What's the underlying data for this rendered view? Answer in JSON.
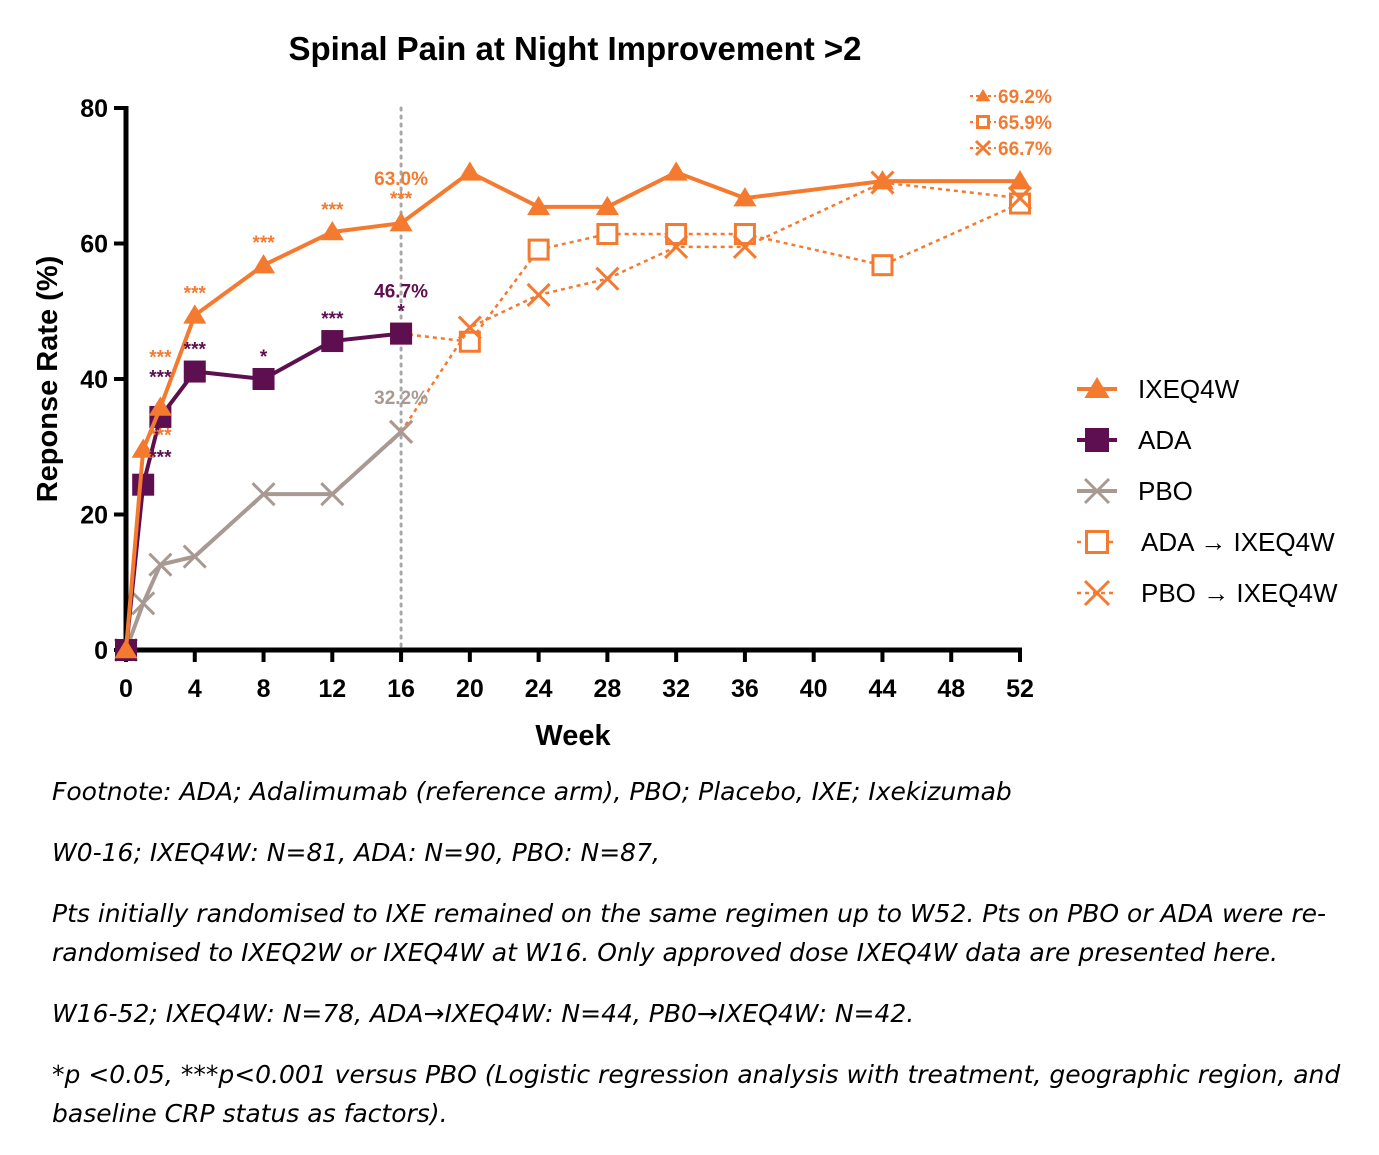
{
  "chart_data": {
    "type": "line",
    "title": "Spinal Pain at Night Improvement >2",
    "xlabel": "Week",
    "ylabel": "Reponse Rate (%)",
    "xlim": [
      0,
      52
    ],
    "ylim": [
      0,
      80
    ],
    "x_ticks": [
      0,
      4,
      8,
      12,
      16,
      20,
      24,
      28,
      32,
      36,
      40,
      44,
      48,
      52
    ],
    "y_ticks": [
      0,
      20,
      40,
      60,
      80
    ],
    "reference_line_x": 16,
    "legend_position": "right",
    "series": [
      {
        "name": "IXEQ4W",
        "color": "#f47a30",
        "marker": "triangle",
        "line": "solid",
        "x": [
          0,
          1,
          2,
          4,
          8,
          12,
          16,
          20,
          24,
          28,
          32,
          36,
          44,
          52
        ],
        "y": [
          0,
          29.6,
          35.8,
          49.4,
          56.8,
          61.7,
          63.0,
          70.5,
          65.4,
          65.4,
          70.5,
          66.7,
          69.2,
          69.2
        ]
      },
      {
        "name": "ADA",
        "color": "#5d0f4f",
        "marker": "square",
        "line": "solid",
        "x": [
          0,
          1,
          2,
          4,
          8,
          12,
          16
        ],
        "y": [
          0,
          24.4,
          34.4,
          41.1,
          40.0,
          45.6,
          46.7
        ]
      },
      {
        "name": "PBO",
        "color": "#a89a92",
        "marker": "x",
        "line": "solid",
        "x": [
          0,
          1,
          2,
          4,
          8,
          12,
          16
        ],
        "y": [
          0,
          6.9,
          12.6,
          13.8,
          23.0,
          23.0,
          32.2
        ]
      },
      {
        "name": "ADA → IXEQ4W",
        "color": "#f47a30",
        "marker": "open-square",
        "line": "dotted",
        "x": [
          16,
          20,
          24,
          28,
          32,
          36,
          44,
          52
        ],
        "y": [
          46.7,
          45.5,
          59.1,
          61.4,
          61.4,
          61.4,
          56.8,
          65.9
        ]
      },
      {
        "name": "PBO → IXEQ4W",
        "color": "#f47a30",
        "marker": "x",
        "line": "dotted",
        "x": [
          16,
          20,
          24,
          28,
          32,
          36,
          44,
          52
        ],
        "y": [
          32.2,
          47.6,
          52.4,
          54.8,
          59.5,
          59.5,
          69.0,
          66.7
        ]
      }
    ],
    "annotations": [
      {
        "text": "***",
        "x": 2,
        "y": 35.8,
        "color": "#f47a30",
        "dy": -44
      },
      {
        "text": "***",
        "x": 2,
        "y": 35.8,
        "color": "#f47a30",
        "dy": 34
      },
      {
        "text": "***",
        "x": 2,
        "y": 35.8,
        "color": "#5d0f4f",
        "dy": -24
      },
      {
        "text": "***",
        "x": 2,
        "y": 35.8,
        "color": "#5d0f4f",
        "dy": 56
      },
      {
        "text": "***",
        "x": 4,
        "y": 49.4,
        "color": "#f47a30",
        "dy": -16
      },
      {
        "text": "***",
        "x": 4,
        "y": 41.1,
        "color": "#5d0f4f",
        "dy": -16
      },
      {
        "text": "***",
        "x": 8,
        "y": 56.8,
        "color": "#f47a30",
        "dy": -16
      },
      {
        "text": "*",
        "x": 8,
        "y": 40.0,
        "color": "#5d0f4f",
        "dy": -16
      },
      {
        "text": "***",
        "x": 12,
        "y": 61.7,
        "color": "#f47a30",
        "dy": -16
      },
      {
        "text": "***",
        "x": 12,
        "y": 45.6,
        "color": "#5d0f4f",
        "dy": -16
      },
      {
        "text": "***",
        "x": 16,
        "y": 63.0,
        "color": "#f47a30",
        "dy": -18
      },
      {
        "text": "63.0%",
        "x": 16,
        "y": 63.0,
        "color": "#f47a30",
        "dy": -38
      },
      {
        "text": "*",
        "x": 16,
        "y": 46.7,
        "color": "#5d0f4f",
        "dy": -16
      },
      {
        "text": "46.7%",
        "x": 16,
        "y": 46.7,
        "color": "#5d0f4f",
        "dy": -36
      },
      {
        "text": "32.2%",
        "x": 16,
        "y": 32.2,
        "color": "#a89a92",
        "dy": -28
      }
    ],
    "end_labels": [
      {
        "text": "69.2%",
        "marker": "triangle",
        "color": "#f47a30"
      },
      {
        "text": "65.9%",
        "marker": "open-square",
        "color": "#f47a30"
      },
      {
        "text": "66.7%",
        "marker": "x",
        "color": "#f47a30"
      }
    ]
  },
  "footnotes": [
    "Footnote: ADA; Adalimumab (reference arm), PBO; Placebo, IXE; Ixekizumab",
    "W0-16; IXEQ4W: N=81, ADA: N=90, PBO: N=87,",
    "Pts initially randomised to IXE remained on the same regimen up to W52. Pts on PBO or ADA were re-randomised to IXEQ2W or IXEQ4W at W16. Only approved dose IXEQ4W data are presented here.",
    "W16-52; IXEQ4W: N=78, ADA→IXEQ4W: N=44, PB0→IXEQ4W: N=42.",
    "*p <0.05, ***p<0.001 versus PBO (Logistic regression analysis with treatment, geographic region, and baseline CRP status as factors)."
  ]
}
